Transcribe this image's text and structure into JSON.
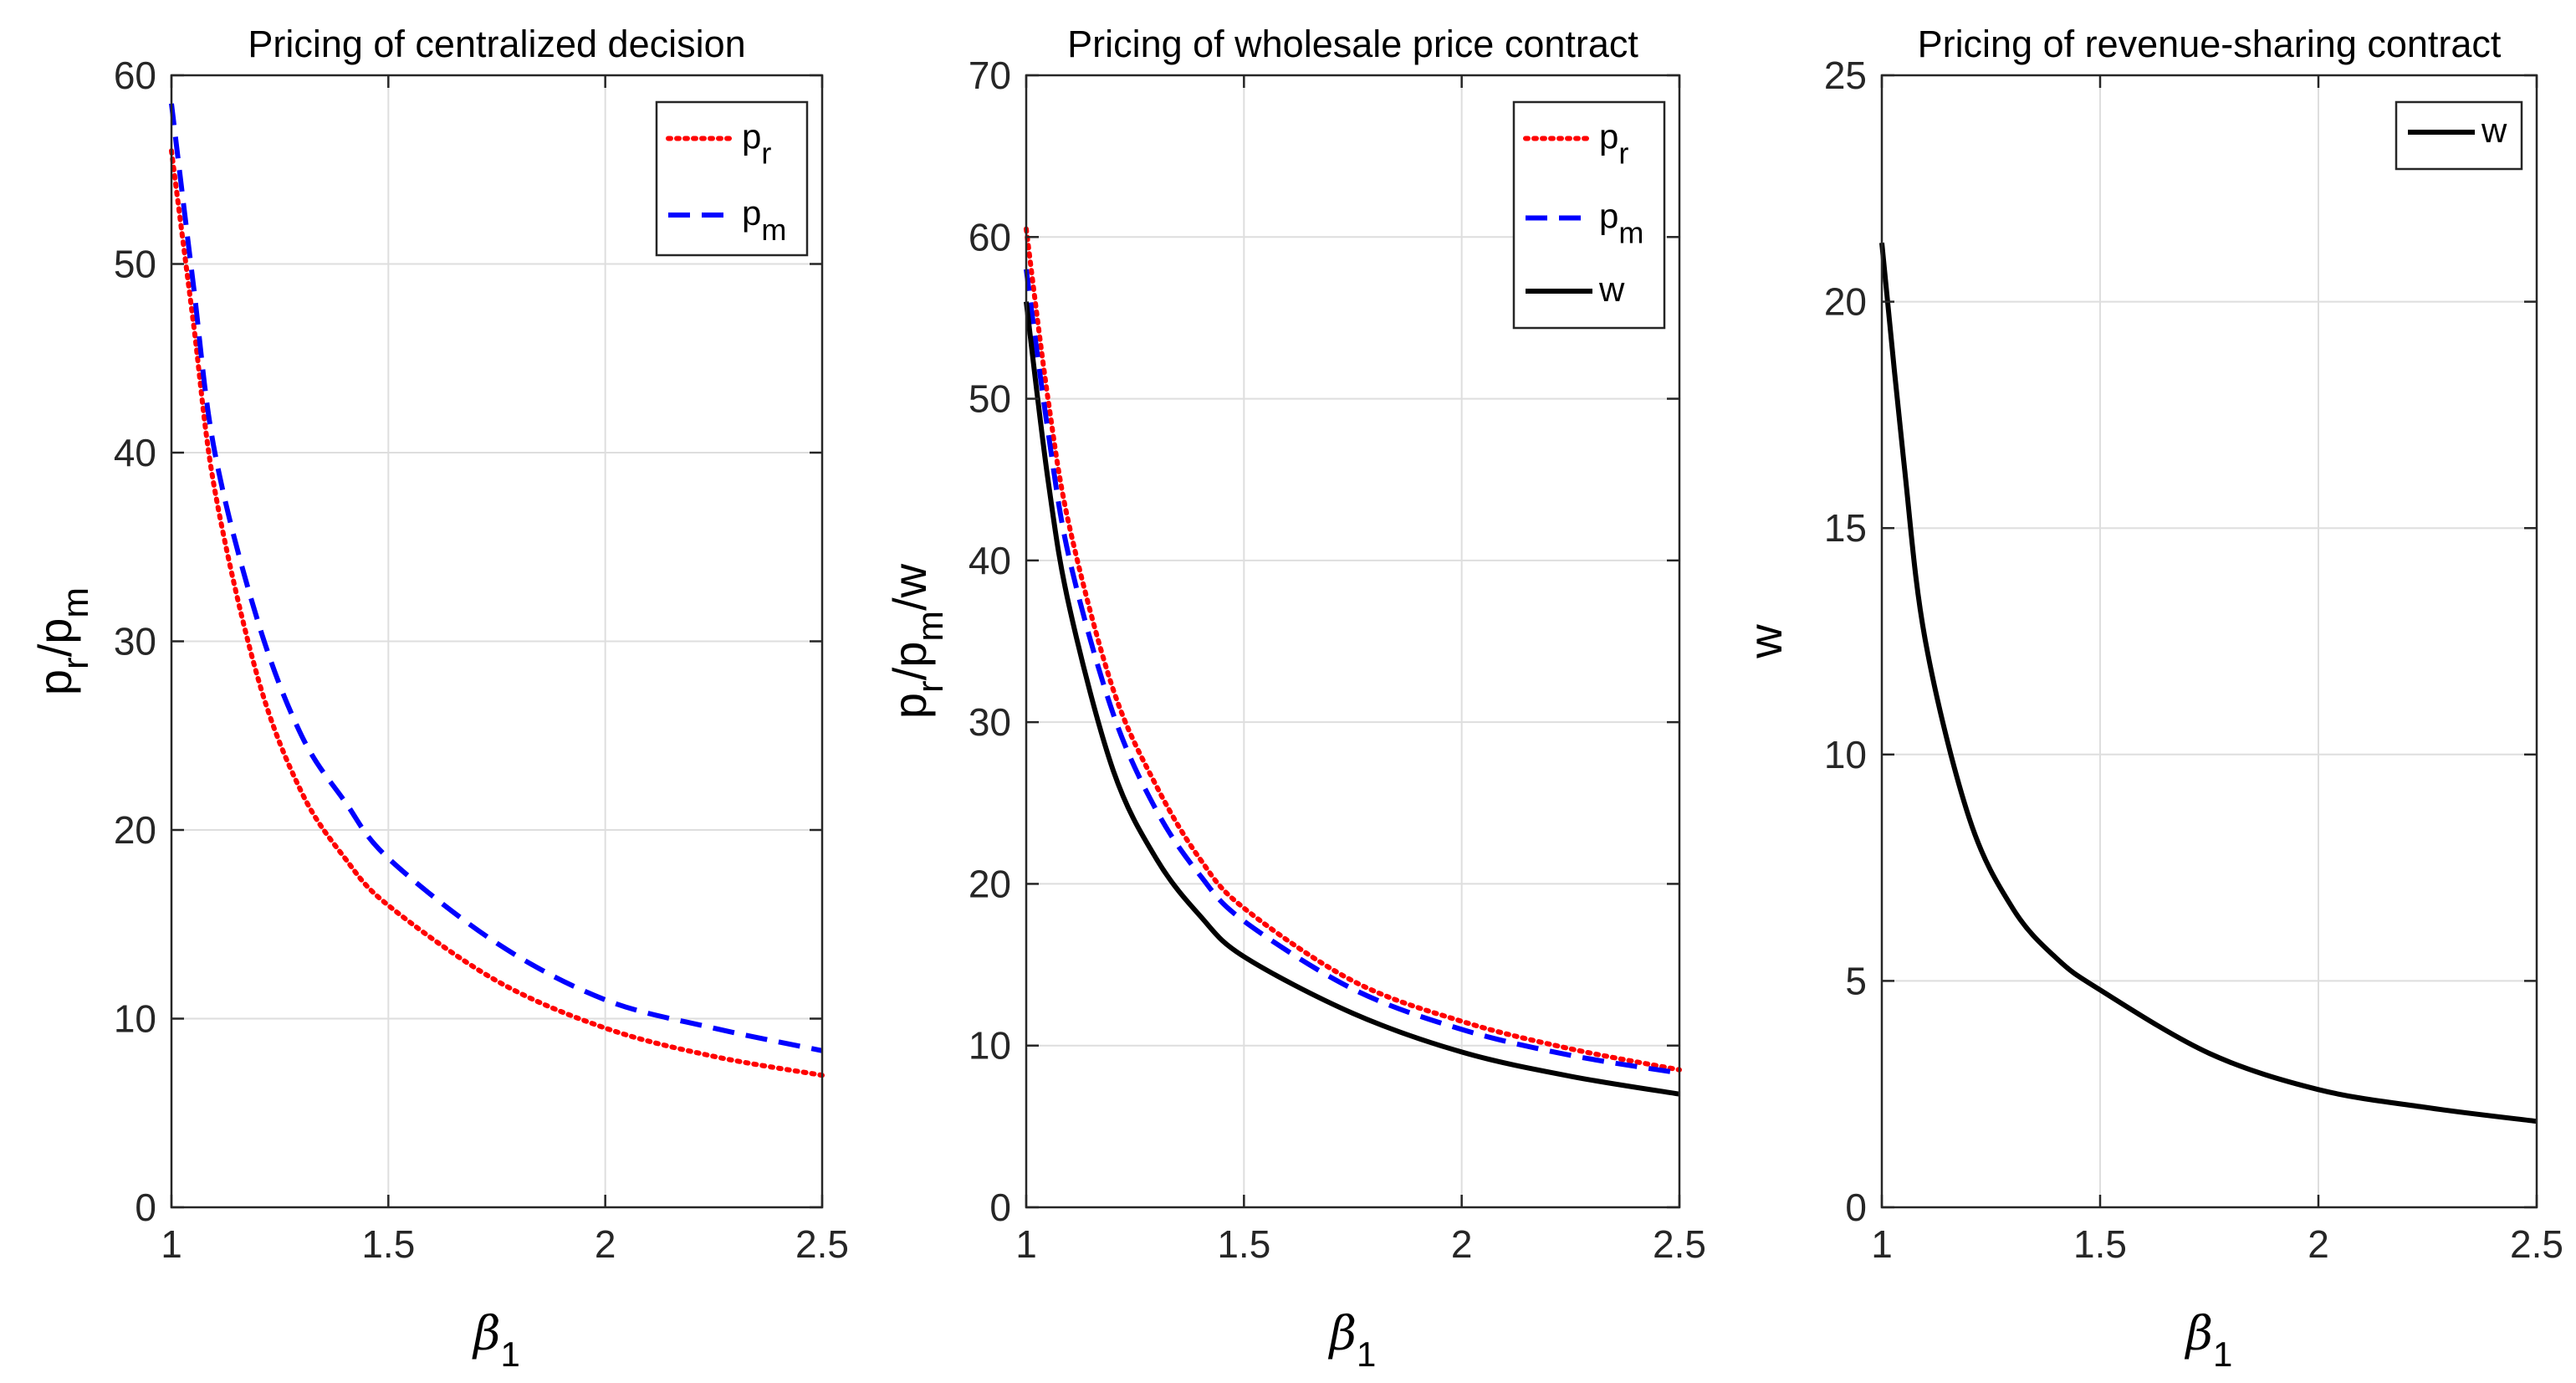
{
  "chart_data": [
    {
      "type": "line",
      "title": "Pricing of centralized decision",
      "xlabel": {
        "symbol": "β",
        "sub": "1"
      },
      "ylabel": {
        "parts": [
          {
            "t": "p"
          },
          {
            "t": "r",
            "sub": true
          },
          {
            "t": "/p"
          },
          {
            "t": "m",
            "sub": true
          }
        ]
      },
      "xlim": [
        1,
        2.5
      ],
      "ylim": [
        0,
        60
      ],
      "xticks": [
        1,
        1.5,
        2,
        2.5
      ],
      "xtick_labels": [
        "1",
        "1.5",
        "2",
        "2.5"
      ],
      "yticks": [
        0,
        10,
        20,
        30,
        40,
        50,
        60
      ],
      "ytick_labels": [
        "0",
        "10",
        "20",
        "30",
        "40",
        "50",
        "60"
      ],
      "grid": true,
      "legend_position": "top-right",
      "series": [
        {
          "name": "p_r",
          "label_main": "p",
          "label_sub": "r",
          "color": "#ff0000",
          "style": "dotted",
          "x": [
            1,
            1.05,
            1.1,
            1.2,
            1.3,
            1.4,
            1.5,
            1.75,
            2,
            2.25,
            2.5
          ],
          "y": [
            56,
            47,
            38,
            28,
            22,
            18.5,
            16,
            12,
            9.5,
            8,
            7
          ]
        },
        {
          "name": "p_m",
          "label_main": "p",
          "label_sub": "m",
          "color": "#0000ff",
          "style": "dashed",
          "x": [
            1,
            1.05,
            1.1,
            1.2,
            1.3,
            1.4,
            1.5,
            1.75,
            2,
            2.25,
            2.5
          ],
          "y": [
            58.5,
            49,
            40,
            31,
            25,
            21.5,
            18.5,
            14,
            11,
            9.5,
            8.3
          ]
        }
      ]
    },
    {
      "type": "line",
      "title": "Pricing of wholesale price contract",
      "xlabel": {
        "symbol": "β",
        "sub": "1"
      },
      "ylabel": {
        "parts": [
          {
            "t": "p"
          },
          {
            "t": "r",
            "sub": true
          },
          {
            "t": "/p"
          },
          {
            "t": "m",
            "sub": true
          },
          {
            "t": "/w"
          }
        ]
      },
      "xlim": [
        1,
        2.5
      ],
      "ylim": [
        0,
        70
      ],
      "xticks": [
        1,
        1.5,
        2,
        2.5
      ],
      "xtick_labels": [
        "1",
        "1.5",
        "2",
        "2.5"
      ],
      "yticks": [
        0,
        10,
        20,
        30,
        40,
        50,
        60,
        70
      ],
      "ytick_labels": [
        "0",
        "10",
        "20",
        "30",
        "40",
        "50",
        "60",
        "70"
      ],
      "grid": true,
      "legend_position": "top-right",
      "series": [
        {
          "name": "p_r",
          "label_main": "p",
          "label_sub": "r",
          "color": "#ff0000",
          "style": "dotted",
          "x": [
            1,
            1.05,
            1.1,
            1.2,
            1.3,
            1.4,
            1.5,
            1.75,
            2,
            2.25,
            2.5
          ],
          "y": [
            60.5,
            50,
            42,
            32,
            26,
            21.5,
            18.5,
            14,
            11.5,
            9.8,
            8.5
          ]
        },
        {
          "name": "p_m",
          "label_main": "p",
          "label_sub": "m",
          "color": "#0000ff",
          "style": "dashed",
          "x": [
            1,
            1.05,
            1.1,
            1.2,
            1.3,
            1.4,
            1.5,
            1.75,
            2,
            2.25,
            2.5
          ],
          "y": [
            58,
            48,
            40,
            30.5,
            24.5,
            20.5,
            17.7,
            13.5,
            11,
            9.4,
            8.3
          ]
        },
        {
          "name": "w",
          "label_main": "w",
          "label_sub": "",
          "color": "#000000",
          "style": "solid",
          "x": [
            1,
            1.05,
            1.1,
            1.2,
            1.3,
            1.4,
            1.5,
            1.75,
            2,
            2.25,
            2.5
          ],
          "y": [
            56,
            45,
            37,
            27,
            21.5,
            18,
            15.5,
            12,
            9.6,
            8.1,
            7
          ]
        }
      ]
    },
    {
      "type": "line",
      "title": "Pricing of revenue-sharing contract",
      "xlabel": {
        "symbol": "β",
        "sub": "1"
      },
      "ylabel": {
        "parts": [
          {
            "t": "w"
          }
        ]
      },
      "xlim": [
        1,
        2.5
      ],
      "ylim": [
        0,
        25
      ],
      "xticks": [
        1,
        1.5,
        2,
        2.5
      ],
      "xtick_labels": [
        "1",
        "1.5",
        "2",
        "2.5"
      ],
      "yticks": [
        0,
        5,
        10,
        15,
        20,
        25
      ],
      "ytick_labels": [
        "0",
        "5",
        "10",
        "15",
        "20",
        "25"
      ],
      "grid": true,
      "legend_position": "top-right",
      "series": [
        {
          "name": "w",
          "label_main": "w",
          "label_sub": "",
          "color": "#000000",
          "style": "solid",
          "x": [
            1,
            1.05,
            1.1,
            1.2,
            1.3,
            1.4,
            1.5,
            1.75,
            2,
            2.25,
            2.5
          ],
          "y": [
            21.3,
            16.5,
            12.5,
            8.6,
            6.6,
            5.5,
            4.8,
            3.4,
            2.6,
            2.2,
            1.9
          ]
        }
      ]
    }
  ]
}
